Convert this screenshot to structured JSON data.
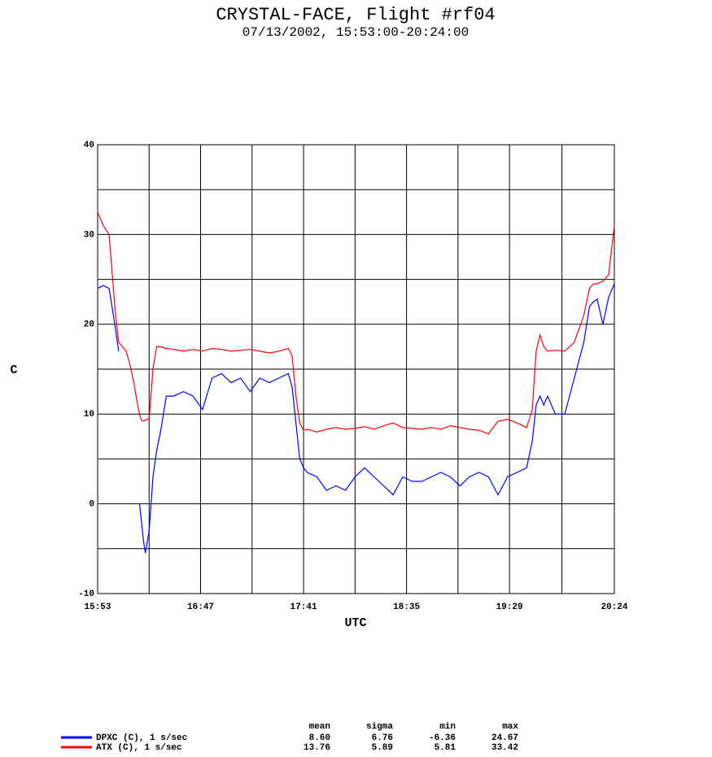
{
  "chart_data": {
    "type": "line",
    "title": "CRYSTAL-FACE, Flight #rf04",
    "subtitle": "07/13/2002, 15:53:00-20:24:00",
    "x_label": "UTC",
    "y_label": "C",
    "x": [
      "15:53",
      "15:56",
      "15:59",
      "16:02",
      "16:04",
      "16:06",
      "16:08",
      "16:10",
      "16:12",
      "16:14",
      "16:15",
      "16:16",
      "16:17",
      "16:18",
      "16:20",
      "16:22",
      "16:24",
      "16:26",
      "16:29",
      "16:33",
      "16:38",
      "16:43",
      "16:48",
      "16:53",
      "16:58",
      "17:03",
      "17:08",
      "17:13",
      "17:18",
      "17:23",
      "17:28",
      "17:33",
      "17:35",
      "17:37",
      "17:39",
      "17:41",
      "17:43",
      "17:48",
      "17:53",
      "17:58",
      "18:03",
      "18:08",
      "18:13",
      "18:18",
      "18:23",
      "18:28",
      "18:33",
      "18:38",
      "18:43",
      "18:48",
      "18:53",
      "18:58",
      "19:03",
      "19:08",
      "19:13",
      "19:18",
      "19:23",
      "19:28",
      "19:33",
      "19:38",
      "19:41",
      "19:43",
      "19:45",
      "19:47",
      "19:49",
      "19:53",
      "19:58",
      "20:03",
      "20:08",
      "20:11",
      "20:13",
      "20:15",
      "20:18",
      "20:21",
      "20:24"
    ],
    "xlim": [
      "15:53",
      "20:24"
    ],
    "xticks": [
      "15:53",
      "16:47",
      "17:41",
      "18:35",
      "19:29",
      "20:24"
    ],
    "ylim": [
      -10,
      40
    ],
    "yticks": [
      -10,
      0,
      10,
      20,
      30,
      40
    ],
    "grid": true,
    "stats_columns": [
      "mean",
      "sigma",
      "min",
      "max"
    ],
    "series": [
      {
        "name": "DPXC (C), 1 s/sec",
        "color": "#0000ff",
        "stats": [
          "8.60",
          "6.76",
          "-6.36",
          "24.67"
        ],
        "values": [
          24,
          24.3,
          24,
          20,
          17,
          null,
          null,
          null,
          null,
          null,
          0,
          -2,
          -4,
          -5.5,
          -3,
          3,
          6,
          8,
          12,
          12,
          12.5,
          12,
          10.5,
          14,
          14.5,
          13.5,
          14,
          12.5,
          14,
          13.5,
          14,
          14.5,
          13,
          9,
          5,
          4,
          3.5,
          3,
          1.5,
          2,
          1.5,
          3,
          4,
          3,
          2,
          1,
          3,
          2.5,
          2.5,
          3,
          3.5,
          3,
          2,
          3,
          3.5,
          3,
          1,
          3,
          3.5,
          4,
          7,
          11,
          12,
          11,
          12,
          10,
          10,
          14,
          18,
          22,
          22.5,
          22.8,
          20,
          23,
          24.5
        ]
      },
      {
        "name": "ATX (C), 1 s/sec",
        "color": "#ff0000",
        "stats": [
          "13.76",
          "5.89",
          "5.81",
          "33.42"
        ],
        "values": [
          32.5,
          31,
          30,
          22,
          18,
          17.5,
          17,
          15.5,
          13.5,
          11,
          10,
          9.3,
          9.2,
          9.3,
          9.5,
          15,
          17.5,
          17.5,
          17.3,
          17.2,
          17,
          17.2,
          17,
          17.3,
          17.2,
          17,
          17.1,
          17.2,
          17,
          16.8,
          17,
          17.3,
          16.5,
          12,
          9,
          8.2,
          8.3,
          8,
          8.3,
          8.5,
          8.3,
          8.4,
          8.6,
          8.3,
          8.7,
          9,
          8.5,
          8.4,
          8.3,
          8.5,
          8.3,
          8.7,
          8.5,
          8.3,
          8.2,
          7.8,
          9.2,
          9.4,
          9,
          8.5,
          10.5,
          17,
          18.8,
          17.5,
          17,
          17.1,
          17,
          18,
          21,
          24,
          24.5,
          24.5,
          24.8,
          25.5,
          31
        ]
      }
    ]
  }
}
